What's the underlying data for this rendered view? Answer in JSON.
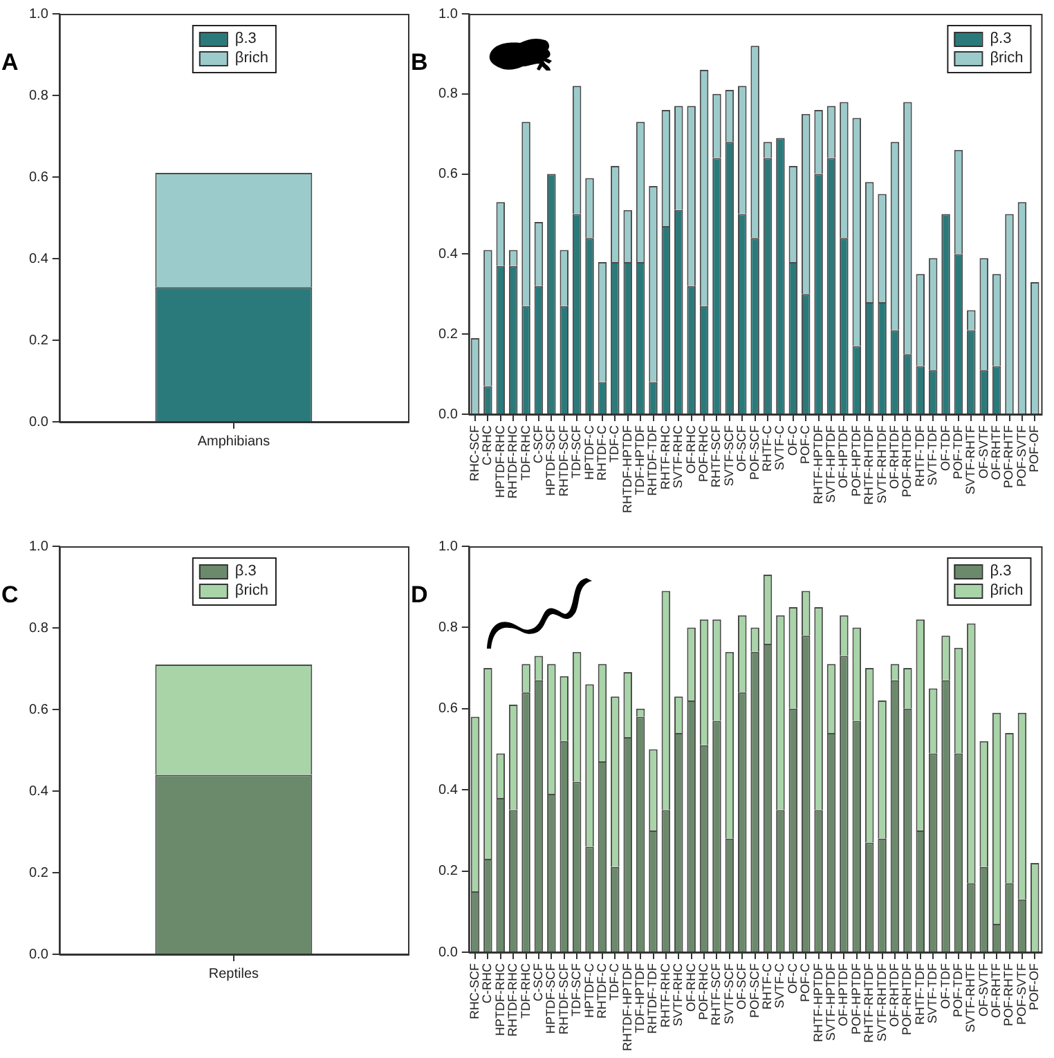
{
  "chart_data": [
    {
      "type": "bar",
      "title": "A",
      "stacked": true,
      "categories": [
        "Amphibians"
      ],
      "series": [
        {
          "name": "β.3",
          "color": "#2a7a7b",
          "values": [
            0.33
          ]
        },
        {
          "name": "βrich",
          "color": "#9ccbcb",
          "values": [
            0.28
          ]
        }
      ],
      "ylim": [
        0,
        1
      ],
      "yticks": [
        {
          "value": 0,
          "label": "0.0"
        },
        {
          "value": 0.2,
          "label": "0.2"
        },
        {
          "value": 0.4,
          "label": "0.4"
        },
        {
          "value": 0.6,
          "label": "0.6"
        },
        {
          "value": 0.8,
          "label": "0.8"
        },
        {
          "value": 1,
          "label": "1.0"
        }
      ],
      "grid": false,
      "legend": "top"
    },
    {
      "type": "bar",
      "title": "B",
      "stacked": true,
      "categories": [
        "RHC-SCF",
        "C-RHC",
        "HPTDF-RHC",
        "RHTDF-RHC",
        "TDF-RHC",
        "C-SCF",
        "HPTDF-SCF",
        "RHTDF-SCF",
        "TDF-SCF",
        "HPTDF-C",
        "RHTDF-C",
        "TDF-C",
        "RHTDF-HPTDF",
        "TDF-HPTDF",
        "RHTDF-TDF",
        "RHTF-RHC",
        "SVTF-RHC",
        "OF-RHC",
        "POF-RHC",
        "RHTF-SCF",
        "SVTF-SCF",
        "OF-SCF",
        "POF-SCF",
        "RHTF-C",
        "SVTF-C",
        "OF-C",
        "POF-C",
        "RHTF-HPTDF",
        "SVTF-HPTDF",
        "OF-HPTDF",
        "POF-HPTDF",
        "RHTF-RHTDF",
        "SVTF-RHTDF",
        "OF-RHTDF",
        "POF-RHTDF",
        "RHTF-TDF",
        "SVTF-TDF",
        "OF-TDF",
        "POF-TDF",
        "SVTF-RHTF",
        "OF-SVTF",
        "OF-RHTF",
        "POF-RHTF",
        "POF-SVTF",
        "POF-OF"
      ],
      "series": [
        {
          "name": "β.3",
          "color": "#2a7a7b",
          "values": [
            0,
            0.07,
            0.37,
            0.37,
            0.27,
            0.32,
            0.6,
            0.27,
            0.5,
            0.44,
            0.08,
            0.38,
            0.38,
            0.38,
            0.08,
            0.47,
            0.51,
            0.32,
            0.27,
            0.64,
            0.68,
            0.5,
            0.44,
            0.64,
            0.69,
            0.38,
            0.3,
            0.6,
            0.64,
            0.44,
            0.17,
            0.28,
            0.28,
            0.21,
            0.15,
            0.12,
            0.11,
            0.5,
            0.4,
            0.21,
            0.11,
            0.12,
            0,
            0,
            0
          ]
        },
        {
          "name": "βrich",
          "color": "#9ccbcb",
          "values": [
            0.19,
            0.34,
            0.16,
            0.04,
            0.46,
            0.16,
            0,
            0.14,
            0.32,
            0.15,
            0.3,
            0.24,
            0.13,
            0.35,
            0.49,
            0.29,
            0.26,
            0.45,
            0.59,
            0.16,
            0.13,
            0.32,
            0.48,
            0.04,
            0,
            0.24,
            0.45,
            0.16,
            0.13,
            0.34,
            0.57,
            0.3,
            0.27,
            0.47,
            0.63,
            0.23,
            0.28,
            0,
            0.26,
            0.05,
            0.28,
            0.23,
            0.5,
            0.53,
            0.33
          ]
        }
      ],
      "ylim": [
        0,
        1
      ],
      "yticks": [
        {
          "value": 0,
          "label": "0.0"
        },
        {
          "value": 0.2,
          "label": "0.2"
        },
        {
          "value": 0.4,
          "label": "0.4"
        },
        {
          "value": 0.6,
          "label": "0.6"
        },
        {
          "value": 0.8,
          "label": "0.8"
        },
        {
          "value": 1,
          "label": "1.0"
        }
      ],
      "grid": false,
      "legend": "top right"
    },
    {
      "type": "bar",
      "title": "C",
      "stacked": true,
      "categories": [
        "Reptiles"
      ],
      "series": [
        {
          "name": "β.3",
          "color": "#6b8a6b",
          "values": [
            0.44
          ]
        },
        {
          "name": "βrich",
          "color": "#a8d4a8",
          "values": [
            0.27
          ]
        }
      ],
      "ylim": [
        0,
        1
      ],
      "yticks": [
        {
          "value": 0,
          "label": "0.0"
        },
        {
          "value": 0.2,
          "label": "0.2"
        },
        {
          "value": 0.4,
          "label": "0.4"
        },
        {
          "value": 0.6,
          "label": "0.6"
        },
        {
          "value": 0.8,
          "label": "0.8"
        },
        {
          "value": 1,
          "label": "1.0"
        }
      ],
      "grid": false,
      "legend": "top"
    },
    {
      "type": "bar",
      "title": "D",
      "stacked": true,
      "categories": [
        "RHC-SCF",
        "C-RHC",
        "HPTDF-RHC",
        "RHTDF-RHC",
        "TDF-RHC",
        "C-SCF",
        "HPTDF-SCF",
        "RHTDF-SCF",
        "TDF-SCF",
        "HPTDF-C",
        "RHTDF-C",
        "TDF-C",
        "RHTDF-HPTDF",
        "TDF-HPTDF",
        "RHTDF-TDF",
        "RHTF-RHC",
        "SVTF-RHC",
        "OF-RHC",
        "POF-RHC",
        "RHTF-SCF",
        "SVTF-SCF",
        "OF-SCF",
        "POF-SCF",
        "RHTF-C",
        "SVTF-C",
        "OF-C",
        "POF-C",
        "RHTF-HPTDF",
        "SVTF-HPTDF",
        "OF-HPTDF",
        "POF-HPTDF",
        "RHTF-RHTDF",
        "SVTF-RHTDF",
        "OF-RHTDF",
        "POF-RHTDF",
        "RHTF-TDF",
        "SVTF-TDF",
        "OF-TDF",
        "POF-TDF",
        "SVTF-RHTF",
        "OF-SVTF",
        "OF-RHTF",
        "POF-RHTF",
        "POF-SVTF",
        "POF-OF"
      ],
      "series": [
        {
          "name": "β.3",
          "color": "#6b8a6b",
          "values": [
            0.15,
            0.23,
            0.38,
            0.35,
            0.64,
            0.67,
            0.39,
            0.52,
            0.42,
            0.26,
            0.47,
            0.21,
            0.53,
            0.58,
            0.3,
            0.35,
            0.54,
            0.62,
            0.51,
            0.57,
            0.28,
            0.64,
            0.74,
            0.76,
            0.35,
            0.6,
            0.78,
            0.35,
            0.54,
            0.73,
            0.57,
            0.27,
            0.28,
            0.67,
            0.6,
            0.3,
            0.49,
            0.67,
            0.49,
            0.17,
            0.21,
            0.07,
            0.17,
            0.13,
            0
          ]
        },
        {
          "name": "βrich",
          "color": "#a8d4a8",
          "values": [
            0.43,
            0.47,
            0.11,
            0.26,
            0.07,
            0.06,
            0.32,
            0.16,
            0.32,
            0.4,
            0.24,
            0.42,
            0.16,
            0.02,
            0.2,
            0.54,
            0.09,
            0.18,
            0.31,
            0.25,
            0.46,
            0.19,
            0.06,
            0.17,
            0.48,
            0.25,
            0.11,
            0.5,
            0.17,
            0.1,
            0.23,
            0.43,
            0.34,
            0.04,
            0.1,
            0.52,
            0.16,
            0.11,
            0.26,
            0.64,
            0.31,
            0.52,
            0.37,
            0.46,
            0.22
          ]
        }
      ],
      "ylim": [
        0,
        1
      ],
      "yticks": [
        {
          "value": 0,
          "label": "0.0"
        },
        {
          "value": 0.2,
          "label": "0.2"
        },
        {
          "value": 0.4,
          "label": "0.4"
        },
        {
          "value": 0.6,
          "label": "0.6"
        },
        {
          "value": 0.8,
          "label": "0.8"
        },
        {
          "value": 1,
          "label": "1.0"
        }
      ],
      "grid": false,
      "legend": "top right"
    }
  ]
}
